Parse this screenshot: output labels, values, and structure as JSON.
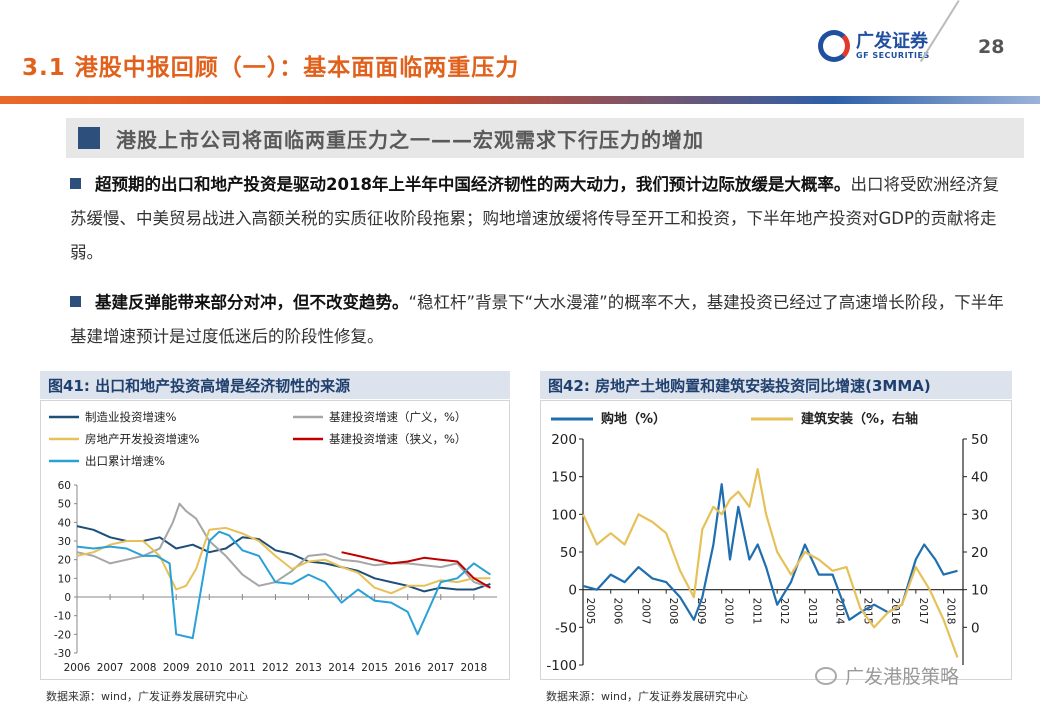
{
  "header": {
    "title": "3.1 港股中报回顾（一）：基本面面临两重压力",
    "logo_cn": "广发证券",
    "logo_en": "GF SECURITIES",
    "page_number": "28"
  },
  "section_heading": "港股上市公司将面临两重压力之一——宏观需求下行压力的增加",
  "bullets": [
    {
      "bold": "超预期的出口和地产投资是驱动2018年上半年中国经济韧性的两大动力，我们预计边际放缓是大概率。",
      "text": "出口将受欧洲经济复苏缓慢、中美贸易战进入高额关税的实质征收阶段拖累；购地增速放缓将传导至开工和投资，下半年地产投资对GDP的贡献将走弱。"
    },
    {
      "bold": "基建反弹能带来部分对冲，但不改变趋势。",
      "text": "“稳杠杆”背景下“大水漫灌”的概率不大，基建投资已经过了高速增长阶段，下半年基建增速预计是过度低迷后的阶段性修复。"
    }
  ],
  "figures": [
    {
      "title": "图41:  出口和地产投资高增是经济韧性的来源",
      "source": "数据来源：wind，广发证券发展研究中心"
    },
    {
      "title": "图42:  房地产土地购置和建筑安装投资同比增速(3MMA)",
      "source": "数据来源：wind，广发证券发展研究中心"
    }
  ],
  "watermark": "广发港股策略",
  "colors": {
    "title_orange": "#e0601c",
    "navy": "#2d4f7c",
    "series_navy": "#1f4e79",
    "series_gray": "#a6a6a6",
    "series_yellow": "#e6c15a",
    "series_red": "#c00000",
    "series_blue": "#2aa0d8"
  },
  "chart_data": [
    {
      "type": "line",
      "title": "图41:  出口和地产投资高增是经济韧性的来源",
      "ylim": [
        -30,
        60
      ],
      "yticks": [
        -30,
        -20,
        -10,
        0,
        10,
        20,
        30,
        40,
        50,
        60
      ],
      "xlim": [
        2006,
        2018.7
      ],
      "xticks": [
        "2006",
        "2007",
        "2008",
        "2009",
        "2010",
        "2011",
        "2012",
        "2013",
        "2014",
        "2015",
        "2016",
        "2017",
        "2018"
      ],
      "legend": [
        "制造业投资增速%",
        "基建投资增速（广义，%）",
        "房地产开发投资增速%",
        "基建投资增速（狭义，%）",
        "出口累计增速%"
      ],
      "series": [
        {
          "name": "制造业投资增速%",
          "color": "#1f4e79",
          "x": [
            2006,
            2006.5,
            2007,
            2007.5,
            2008,
            2008.5,
            2009,
            2009.5,
            2010,
            2010.5,
            2011,
            2011.5,
            2012,
            2012.5,
            2013,
            2013.5,
            2014,
            2014.5,
            2015,
            2015.5,
            2016,
            2016.5,
            2017,
            2017.5,
            2018,
            2018.5
          ],
          "y": [
            38,
            36,
            32,
            30,
            30,
            32,
            26,
            28,
            24,
            26,
            32,
            31,
            25,
            23,
            19,
            18,
            16,
            14,
            10,
            8,
            6,
            3,
            5,
            4,
            4,
            7
          ]
        },
        {
          "name": "基建投资增速（广义，%）",
          "color": "#a6a6a6",
          "x": [
            2006,
            2006.5,
            2007,
            2007.5,
            2008,
            2008.5,
            2008.9,
            2009.1,
            2009.3,
            2009.6,
            2010,
            2010.5,
            2011,
            2011.5,
            2012,
            2012.5,
            2013,
            2013.5,
            2014,
            2014.5,
            2015,
            2015.5,
            2016,
            2016.5,
            2017,
            2017.5,
            2018,
            2018.5
          ],
          "y": [
            24,
            22,
            18,
            20,
            22,
            26,
            40,
            50,
            46,
            42,
            30,
            22,
            12,
            6,
            8,
            14,
            22,
            23,
            20,
            19,
            17,
            18,
            18,
            17,
            16,
            18,
            8,
            5
          ]
        },
        {
          "name": "房地产开发投资增速%",
          "color": "#e6c15a",
          "x": [
            2006,
            2006.5,
            2007,
            2007.5,
            2008,
            2008.5,
            2009,
            2009.3,
            2009.6,
            2010,
            2010.5,
            2011,
            2011.5,
            2012,
            2012.5,
            2013,
            2013.5,
            2014,
            2014.5,
            2015,
            2015.5,
            2016,
            2016.5,
            2017,
            2017.5,
            2018,
            2018.5
          ],
          "y": [
            22,
            24,
            28,
            30,
            30,
            22,
            4,
            6,
            15,
            36,
            37,
            34,
            30,
            22,
            15,
            19,
            20,
            16,
            13,
            5,
            2,
            6,
            6,
            9,
            8,
            10,
            10
          ]
        },
        {
          "name": "基建投资增速（狭义，%）",
          "color": "#c00000",
          "x": [
            2014,
            2014.5,
            2015,
            2015.5,
            2016,
            2016.5,
            2017,
            2017.5,
            2018,
            2018.5
          ],
          "y": [
            24,
            22,
            20,
            18,
            19,
            21,
            20,
            19,
            10,
            5
          ]
        },
        {
          "name": "出口累计增速%",
          "color": "#2aa0d8",
          "x": [
            2006,
            2006.5,
            2007,
            2007.5,
            2008,
            2008.4,
            2008.8,
            2009,
            2009.5,
            2010,
            2010.3,
            2010.6,
            2011,
            2011.5,
            2012,
            2012.5,
            2013,
            2013.5,
            2014,
            2014.5,
            2015,
            2015.5,
            2016,
            2016.3,
            2016.6,
            2017,
            2017.5,
            2018,
            2018.5
          ],
          "y": [
            27,
            26,
            27,
            26,
            22,
            22,
            18,
            -20,
            -22,
            30,
            35,
            33,
            25,
            22,
            8,
            7,
            12,
            8,
            -3,
            4,
            -2,
            -3,
            -8,
            -20,
            -8,
            8,
            10,
            18,
            12
          ]
        }
      ]
    },
    {
      "type": "line",
      "title": "图42:  房地产土地购置和建筑安装投资同比增速(3MMA)",
      "y_left": {
        "ylim": [
          -100,
          200
        ],
        "ticks": [
          -100,
          -50,
          0,
          50,
          100,
          150,
          200
        ]
      },
      "y_right": {
        "ylim": [
          -10,
          50
        ],
        "ticks": [
          0,
          10,
          20,
          30,
          40,
          50
        ]
      },
      "xlim": [
        2005,
        2018.7
      ],
      "xticks": [
        "2005",
        "2006",
        "2007",
        "2008",
        "2009",
        "2010",
        "2011",
        "2012",
        "2013",
        "2014",
        "2015",
        "2016",
        "2017",
        "2018"
      ],
      "legend": [
        "购地（%）",
        "建筑安装（%，右轴"
      ],
      "series": [
        {
          "name": "购地（%）",
          "axis": "left",
          "color": "#1f6eb0",
          "x": [
            2005,
            2005.5,
            2006,
            2006.5,
            2007,
            2007.5,
            2008,
            2008.5,
            2009,
            2009.3,
            2009.7,
            2010,
            2010.3,
            2010.6,
            2011,
            2011.3,
            2011.6,
            2012,
            2012.5,
            2013,
            2013.5,
            2014,
            2014.3,
            2014.6,
            2015,
            2015.5,
            2016,
            2016.5,
            2017,
            2017.3,
            2017.7,
            2018,
            2018.5
          ],
          "y": [
            5,
            0,
            20,
            10,
            30,
            15,
            10,
            -10,
            -40,
            -10,
            60,
            140,
            40,
            110,
            40,
            60,
            30,
            -20,
            10,
            60,
            20,
            20,
            -10,
            -40,
            -30,
            -20,
            -30,
            -20,
            40,
            60,
            40,
            20,
            25
          ]
        },
        {
          "name": "建筑安装（%，右轴",
          "axis": "right",
          "color": "#e6c15a",
          "x": [
            2005,
            2005.5,
            2006,
            2006.5,
            2007,
            2007.5,
            2008,
            2008.5,
            2009,
            2009.3,
            2009.7,
            2010,
            2010.3,
            2010.6,
            2011,
            2011.3,
            2011.6,
            2012,
            2012.5,
            2013,
            2013.5,
            2014,
            2014.5,
            2015,
            2015.5,
            2016,
            2016.5,
            2017,
            2017.5,
            2018,
            2018.5
          ],
          "y": [
            30,
            22,
            25,
            22,
            30,
            28,
            25,
            15,
            8,
            26,
            32,
            30,
            34,
            36,
            32,
            42,
            30,
            20,
            14,
            20,
            18,
            15,
            16,
            5,
            0,
            4,
            6,
            16,
            10,
            2,
            -8
          ]
        }
      ]
    }
  ]
}
